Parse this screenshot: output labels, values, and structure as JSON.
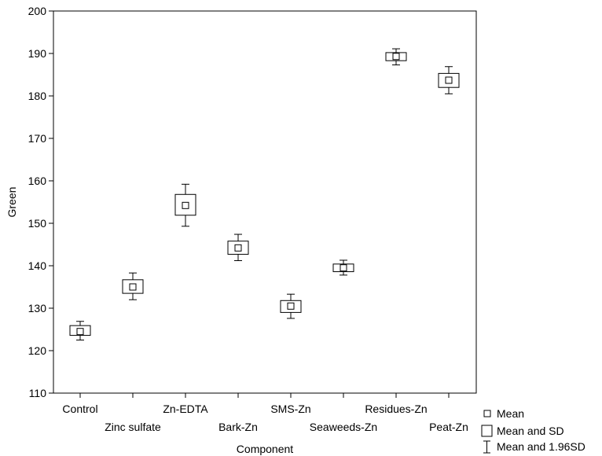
{
  "chart_data": {
    "type": "boxplot",
    "xlabel": "Component",
    "ylabel": "Green",
    "ylim": [
      110,
      200
    ],
    "yticks": [
      110,
      120,
      130,
      140,
      150,
      160,
      170,
      180,
      190,
      200
    ],
    "grid": false,
    "legend_position": "bottom-right",
    "categories": [
      "Control",
      "Zinc sulfate",
      "Zn-EDTA",
      "Bark-Zn",
      "SMS-Zn",
      "Seaweeds-Zn",
      "Residues-Zn",
      "Peat-Zn"
    ],
    "series": [
      {
        "name": "Mean",
        "values": [
          124.5,
          135.0,
          154.2,
          144.2,
          130.5,
          139.5,
          189.3,
          183.7
        ]
      },
      {
        "name": "Mean and SD",
        "low": [
          123.6,
          133.5,
          151.9,
          142.7,
          129.0,
          138.6,
          188.3,
          182.0
        ],
        "high": [
          125.9,
          136.7,
          156.8,
          145.8,
          131.8,
          140.4,
          190.2,
          185.3
        ]
      },
      {
        "name": "Mean and 1.96SD",
        "low": [
          122.5,
          132.0,
          149.3,
          141.2,
          127.6,
          137.8,
          187.3,
          180.5
        ],
        "high": [
          126.9,
          138.3,
          159.2,
          147.4,
          133.3,
          141.3,
          191.1,
          186.9
        ]
      }
    ],
    "legend": [
      "Mean",
      "Mean and SD",
      "Mean and 1.96SD"
    ]
  }
}
